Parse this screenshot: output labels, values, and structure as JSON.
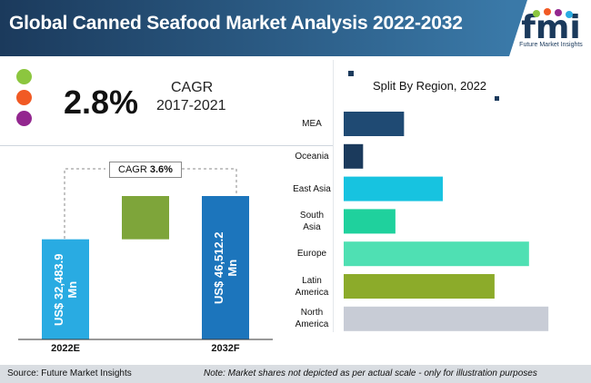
{
  "header": {
    "title": "Global Canned Seafood Market Analysis 2022-2032",
    "logo_text": "fmi",
    "logo_subtitle": "Future Market Insights"
  },
  "cagr_panel": {
    "value": "2.8%",
    "label": "CAGR",
    "period": "2017-2021",
    "dot_colors": [
      "#8cc63f",
      "#f15a24",
      "#93278f"
    ]
  },
  "growth_chart": {
    "cagr_label": "CAGR",
    "cagr_value": "3.6%",
    "bars": [
      {
        "category": "2022E",
        "value": 32483.9,
        "label": "US$ 32,483.9 Mn",
        "color": "#29abe2"
      },
      {
        "category": "2032F",
        "value": 46512.2,
        "label": "US$ 46,512.2 Mn",
        "color": "#1c75bc"
      }
    ],
    "increment_color": "#7ea53a"
  },
  "chart_data": {
    "type": "bar",
    "orientation": "horizontal",
    "title": "Split By Region, 2022",
    "categories": [
      "MEA",
      "Oceania",
      "East Asia",
      "South Asia",
      "Europe",
      "Latin America",
      "North America"
    ],
    "category_lines": [
      [
        "MEA"
      ],
      [
        "Oceania"
      ],
      [
        "East Asia"
      ],
      [
        "South",
        "Asia"
      ],
      [
        "Europe"
      ],
      [
        "Latin",
        "America"
      ],
      [
        "North",
        "America"
      ]
    ],
    "values": [
      28,
      9,
      46,
      24,
      86,
      70,
      95
    ],
    "colors": [
      "#1f4a73",
      "#1b3a5c",
      "#17c3e0",
      "#1fd19d",
      "#4fe0b3",
      "#8cab2a",
      "#c8ccd6"
    ],
    "xlim": [
      0,
      100
    ]
  },
  "footer": {
    "source": "Source: Future Market Insights",
    "note": "Note: Market shares not depicted as per actual scale - only for illustration purposes"
  }
}
